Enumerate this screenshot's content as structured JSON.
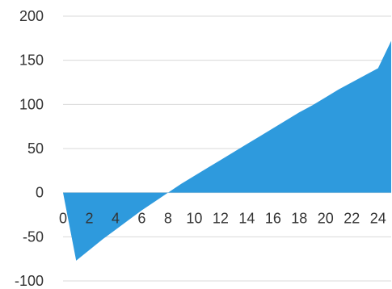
{
  "chart_data": {
    "type": "area",
    "title": "",
    "xlabel": "",
    "ylabel": "",
    "xlim": [
      0,
      25
    ],
    "ylim": [
      -100,
      200
    ],
    "yticks": [
      200,
      150,
      100,
      50,
      0,
      -50,
      -100
    ],
    "xticks": [
      0,
      2,
      4,
      6,
      8,
      10,
      12,
      14,
      16,
      18,
      20,
      22,
      24
    ],
    "grid": true,
    "legend": "none",
    "series": [
      {
        "color": "#2E9ADD",
        "x": [
          0,
          1,
          2,
          3,
          4,
          5,
          6,
          7,
          8,
          9,
          10,
          11,
          12,
          13,
          14,
          15,
          16,
          17,
          18,
          19,
          20,
          21,
          22,
          23,
          24,
          25
        ],
        "y": [
          0,
          -77,
          -65,
          -53,
          -42,
          -31,
          -20,
          -10,
          0,
          10,
          19,
          28,
          37,
          46,
          55,
          64,
          73,
          82,
          91,
          99,
          108,
          117,
          125,
          133,
          141,
          172
        ]
      }
    ]
  }
}
